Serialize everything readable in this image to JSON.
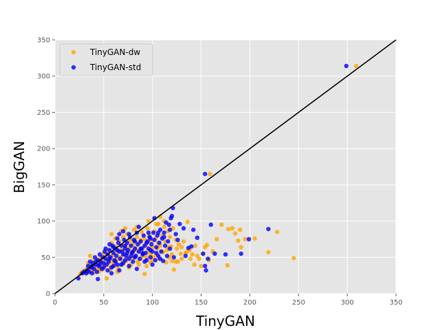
{
  "chart_data": {
    "type": "scatter",
    "title": "",
    "xlabel": "TinyGAN",
    "ylabel": "BigGAN",
    "xlim": [
      0,
      350
    ],
    "ylim": [
      0,
      350
    ],
    "xticks": [
      "0",
      "50",
      "100",
      "150",
      "200",
      "250",
      "300",
      "350"
    ],
    "yticks": [
      "0",
      "50",
      "100",
      "150",
      "200",
      "250",
      "300",
      "350"
    ],
    "grid": true,
    "legend_position": "top-left",
    "reference_line": {
      "from": [
        0,
        0
      ],
      "to": [
        350,
        350
      ],
      "color": "#000000"
    },
    "series": [
      {
        "name": "TinyGAN-dw",
        "color": "#FFA500",
        "points": [
          [
            309,
            314
          ],
          [
            159,
            165
          ],
          [
            245,
            49
          ],
          [
            228,
            85
          ],
          [
            219,
            57
          ],
          [
            205,
            76
          ],
          [
            195,
            75
          ],
          [
            191,
            64
          ],
          [
            190,
            88
          ],
          [
            188,
            73
          ],
          [
            185,
            83
          ],
          [
            182,
            90
          ],
          [
            178,
            89
          ],
          [
            177,
            39
          ],
          [
            171,
            95
          ],
          [
            166,
            75
          ],
          [
            162,
            58
          ],
          [
            158,
            46
          ],
          [
            156,
            67
          ],
          [
            154,
            64
          ],
          [
            152,
            55
          ],
          [
            150,
            38
          ],
          [
            148,
            48
          ],
          [
            143,
            40
          ],
          [
            141,
            54
          ],
          [
            139,
            48
          ],
          [
            137,
            62
          ],
          [
            136,
            99
          ],
          [
            135,
            57
          ],
          [
            132,
            72
          ],
          [
            129,
            55
          ],
          [
            127,
            68
          ],
          [
            126,
            44
          ],
          [
            125,
            62
          ],
          [
            124,
            74
          ],
          [
            122,
            33
          ],
          [
            121,
            90
          ],
          [
            120,
            45
          ],
          [
            119,
            65
          ],
          [
            118,
            78
          ],
          [
            117,
            50
          ],
          [
            116,
            86
          ],
          [
            115,
            60
          ],
          [
            114,
            43
          ],
          [
            113,
            72
          ],
          [
            112,
            92
          ],
          [
            111,
            57
          ],
          [
            110,
            80
          ],
          [
            108,
            66
          ],
          [
            107,
            48
          ],
          [
            106,
            96
          ],
          [
            105,
            62
          ],
          [
            104,
            54
          ],
          [
            103,
            76
          ],
          [
            102,
            86
          ],
          [
            101,
            50
          ],
          [
            100,
            64
          ],
          [
            99,
            72
          ],
          [
            98,
            43
          ],
          [
            97,
            81
          ],
          [
            96,
            58
          ],
          [
            95,
            90
          ],
          [
            94,
            50
          ],
          [
            93,
            67
          ],
          [
            92,
            27
          ],
          [
            92,
            75
          ],
          [
            91,
            55
          ],
          [
            90,
            62
          ],
          [
            89,
            85
          ],
          [
            88,
            48
          ],
          [
            87,
            70
          ],
          [
            86,
            58
          ],
          [
            85,
            44
          ],
          [
            84,
            78
          ],
          [
            83,
            63
          ],
          [
            82,
            52
          ],
          [
            81,
            88
          ],
          [
            80,
            68
          ],
          [
            79,
            57
          ],
          [
            78,
            40
          ],
          [
            77,
            73
          ],
          [
            76,
            62
          ],
          [
            75,
            50
          ],
          [
            74,
            82
          ],
          [
            73,
            45
          ],
          [
            72,
            66
          ],
          [
            71,
            55
          ],
          [
            70,
            78
          ],
          [
            69,
            40
          ],
          [
            68,
            60
          ],
          [
            67,
            50
          ],
          [
            66,
            72
          ],
          [
            65,
            35
          ],
          [
            64,
            57
          ],
          [
            63,
            46
          ],
          [
            62,
            65
          ],
          [
            61,
            39
          ],
          [
            60,
            53
          ],
          [
            59,
            45
          ],
          [
            58,
            70
          ],
          [
            57,
            36
          ],
          [
            56,
            52
          ],
          [
            55,
            42
          ],
          [
            54,
            60
          ],
          [
            53,
            21
          ],
          [
            52,
            48
          ],
          [
            51,
            38
          ],
          [
            50,
            55
          ],
          [
            49,
            33
          ],
          [
            48,
            44
          ],
          [
            47,
            50
          ],
          [
            46,
            37
          ],
          [
            45,
            30
          ],
          [
            44,
            42
          ],
          [
            43,
            47
          ],
          [
            42,
            35
          ],
          [
            41,
            40
          ],
          [
            40,
            29
          ],
          [
            39,
            45
          ],
          [
            38,
            33
          ],
          [
            37,
            38
          ],
          [
            36,
            52
          ],
          [
            35,
            30
          ],
          [
            34,
            42
          ],
          [
            33,
            35
          ],
          [
            32,
            28
          ],
          [
            30,
            32
          ],
          [
            28,
            30
          ],
          [
            26,
            27
          ],
          [
            58,
            82
          ],
          [
            62,
            76
          ],
          [
            68,
            86
          ],
          [
            72,
            90
          ],
          [
            84,
            92
          ],
          [
            96,
            100
          ],
          [
            104,
            96
          ],
          [
            108,
            106
          ],
          [
            112,
            100
          ],
          [
            70,
            44
          ],
          [
            76,
            36
          ],
          [
            80,
            48
          ],
          [
            86,
            40
          ],
          [
            90,
            52
          ],
          [
            94,
            38
          ],
          [
            100,
            46
          ],
          [
            64,
            30
          ],
          [
            60,
            42
          ],
          [
            56,
            32
          ],
          [
            74,
            58
          ],
          [
            66,
            48
          ],
          [
            54,
            46
          ],
          [
            50,
            40
          ],
          [
            46,
            34
          ],
          [
            70,
            64
          ],
          [
            78,
            66
          ],
          [
            82,
            60
          ],
          [
            88,
            74
          ],
          [
            92,
            66
          ],
          [
            98,
            54
          ],
          [
            106,
            70
          ],
          [
            110,
            58
          ],
          [
            116,
            64
          ],
          [
            120,
            54
          ],
          [
            124,
            44
          ],
          [
            130,
            48
          ],
          [
            134,
            56
          ],
          [
            138,
            60
          ],
          [
            144,
            66
          ],
          [
            146,
            52
          ],
          [
            130,
            64
          ]
        ]
      },
      {
        "name": "TinyGAN-std",
        "color": "#0000FF",
        "points": [
          [
            299,
            314
          ],
          [
            154,
            165
          ],
          [
            219,
            89
          ],
          [
            199,
            75
          ],
          [
            191,
            55
          ],
          [
            175,
            54
          ],
          [
            164,
            55
          ],
          [
            160,
            95
          ],
          [
            157,
            48
          ],
          [
            155,
            32
          ],
          [
            154,
            38
          ],
          [
            152,
            55
          ],
          [
            146,
            77
          ],
          [
            142,
            88
          ],
          [
            140,
            65
          ],
          [
            137,
            63
          ],
          [
            134,
            52
          ],
          [
            132,
            90
          ],
          [
            128,
            96
          ],
          [
            126,
            74
          ],
          [
            124,
            82
          ],
          [
            122,
            50
          ],
          [
            121,
            118
          ],
          [
            120,
            107
          ],
          [
            119,
            104
          ],
          [
            118,
            62
          ],
          [
            117,
            95
          ],
          [
            116,
            72
          ],
          [
            115,
            52
          ],
          [
            114,
            98
          ],
          [
            113,
            66
          ],
          [
            112,
            84
          ],
          [
            111,
            45
          ],
          [
            110,
            76
          ],
          [
            109,
            58
          ],
          [
            108,
            88
          ],
          [
            107,
            70
          ],
          [
            106,
            52
          ],
          [
            105,
            80
          ],
          [
            104,
            64
          ],
          [
            103,
            46
          ],
          [
            102,
            74
          ],
          [
            101,
            84
          ],
          [
            100,
            58
          ],
          [
            99,
            68
          ],
          [
            98,
            50
          ],
          [
            97,
            78
          ],
          [
            96,
            62
          ],
          [
            95,
            72
          ],
          [
            94,
            46
          ],
          [
            93,
            56
          ],
          [
            92,
            66
          ],
          [
            91,
            80
          ],
          [
            90,
            54
          ],
          [
            89,
            62
          ],
          [
            88,
            72
          ],
          [
            87,
            48
          ],
          [
            86,
            58
          ],
          [
            85,
            68
          ],
          [
            84,
            84
          ],
          [
            83,
            52
          ],
          [
            82,
            62
          ],
          [
            81,
            74
          ],
          [
            80,
            44
          ],
          [
            79,
            56
          ],
          [
            78,
            66
          ],
          [
            77,
            78
          ],
          [
            76,
            48
          ],
          [
            75,
            60
          ],
          [
            74,
            70
          ],
          [
            73,
            52
          ],
          [
            72,
            62
          ],
          [
            71,
            74
          ],
          [
            70,
            42
          ],
          [
            69,
            58
          ],
          [
            68,
            66
          ],
          [
            67,
            48
          ],
          [
            66,
            58
          ],
          [
            65,
            70
          ],
          [
            64,
            40
          ],
          [
            63,
            52
          ],
          [
            62,
            62
          ],
          [
            61,
            46
          ],
          [
            60,
            56
          ],
          [
            59,
            66
          ],
          [
            58,
            36
          ],
          [
            57,
            50
          ],
          [
            56,
            60
          ],
          [
            55,
            44
          ],
          [
            54,
            54
          ],
          [
            53,
            40
          ],
          [
            52,
            48
          ],
          [
            51,
            58
          ],
          [
            50,
            42
          ],
          [
            49,
            50
          ],
          [
            48,
            34
          ],
          [
            47,
            44
          ],
          [
            46,
            54
          ],
          [
            45,
            38
          ],
          [
            44,
            46
          ],
          [
            43,
            30
          ],
          [
            42,
            40
          ],
          [
            41,
            50
          ],
          [
            40,
            34
          ],
          [
            39,
            42
          ],
          [
            38,
            28
          ],
          [
            37,
            36
          ],
          [
            36,
            44
          ],
          [
            35,
            30
          ],
          [
            34,
            38
          ],
          [
            33,
            32
          ],
          [
            32,
            28
          ],
          [
            30,
            30
          ],
          [
            28,
            28
          ],
          [
            24,
            21
          ],
          [
            44,
            20
          ],
          [
            58,
            28
          ],
          [
            66,
            32
          ],
          [
            76,
            38
          ],
          [
            84,
            34
          ],
          [
            92,
            44
          ],
          [
            100,
            40
          ],
          [
            108,
            48
          ],
          [
            64,
            76
          ],
          [
            70,
            86
          ],
          [
            76,
            82
          ],
          [
            82,
            72
          ],
          [
            86,
            92
          ],
          [
            96,
            84
          ],
          [
            102,
            104
          ],
          [
            60,
            64
          ],
          [
            56,
            68
          ],
          [
            52,
            62
          ],
          [
            66,
            82
          ],
          [
            72,
            66
          ],
          [
            74,
            56
          ],
          [
            78,
            52
          ],
          [
            62,
            44
          ],
          [
            68,
            40
          ],
          [
            80,
            58
          ],
          [
            88,
            62
          ],
          [
            94,
            70
          ],
          [
            98,
            76
          ],
          [
            106,
            84
          ],
          [
            112,
            78
          ],
          [
            118,
            88
          ],
          [
            64,
            60
          ],
          [
            70,
            54
          ],
          [
            56,
            48
          ],
          [
            50,
            36
          ],
          [
            46,
            40
          ],
          [
            42,
            44
          ],
          [
            38,
            38
          ],
          [
            54,
            32
          ],
          [
            60,
            38
          ],
          [
            72,
            46
          ],
          [
            82,
            50
          ],
          [
            90,
            56
          ],
          [
            98,
            60
          ],
          [
            104,
            56
          ]
        ]
      }
    ]
  }
}
